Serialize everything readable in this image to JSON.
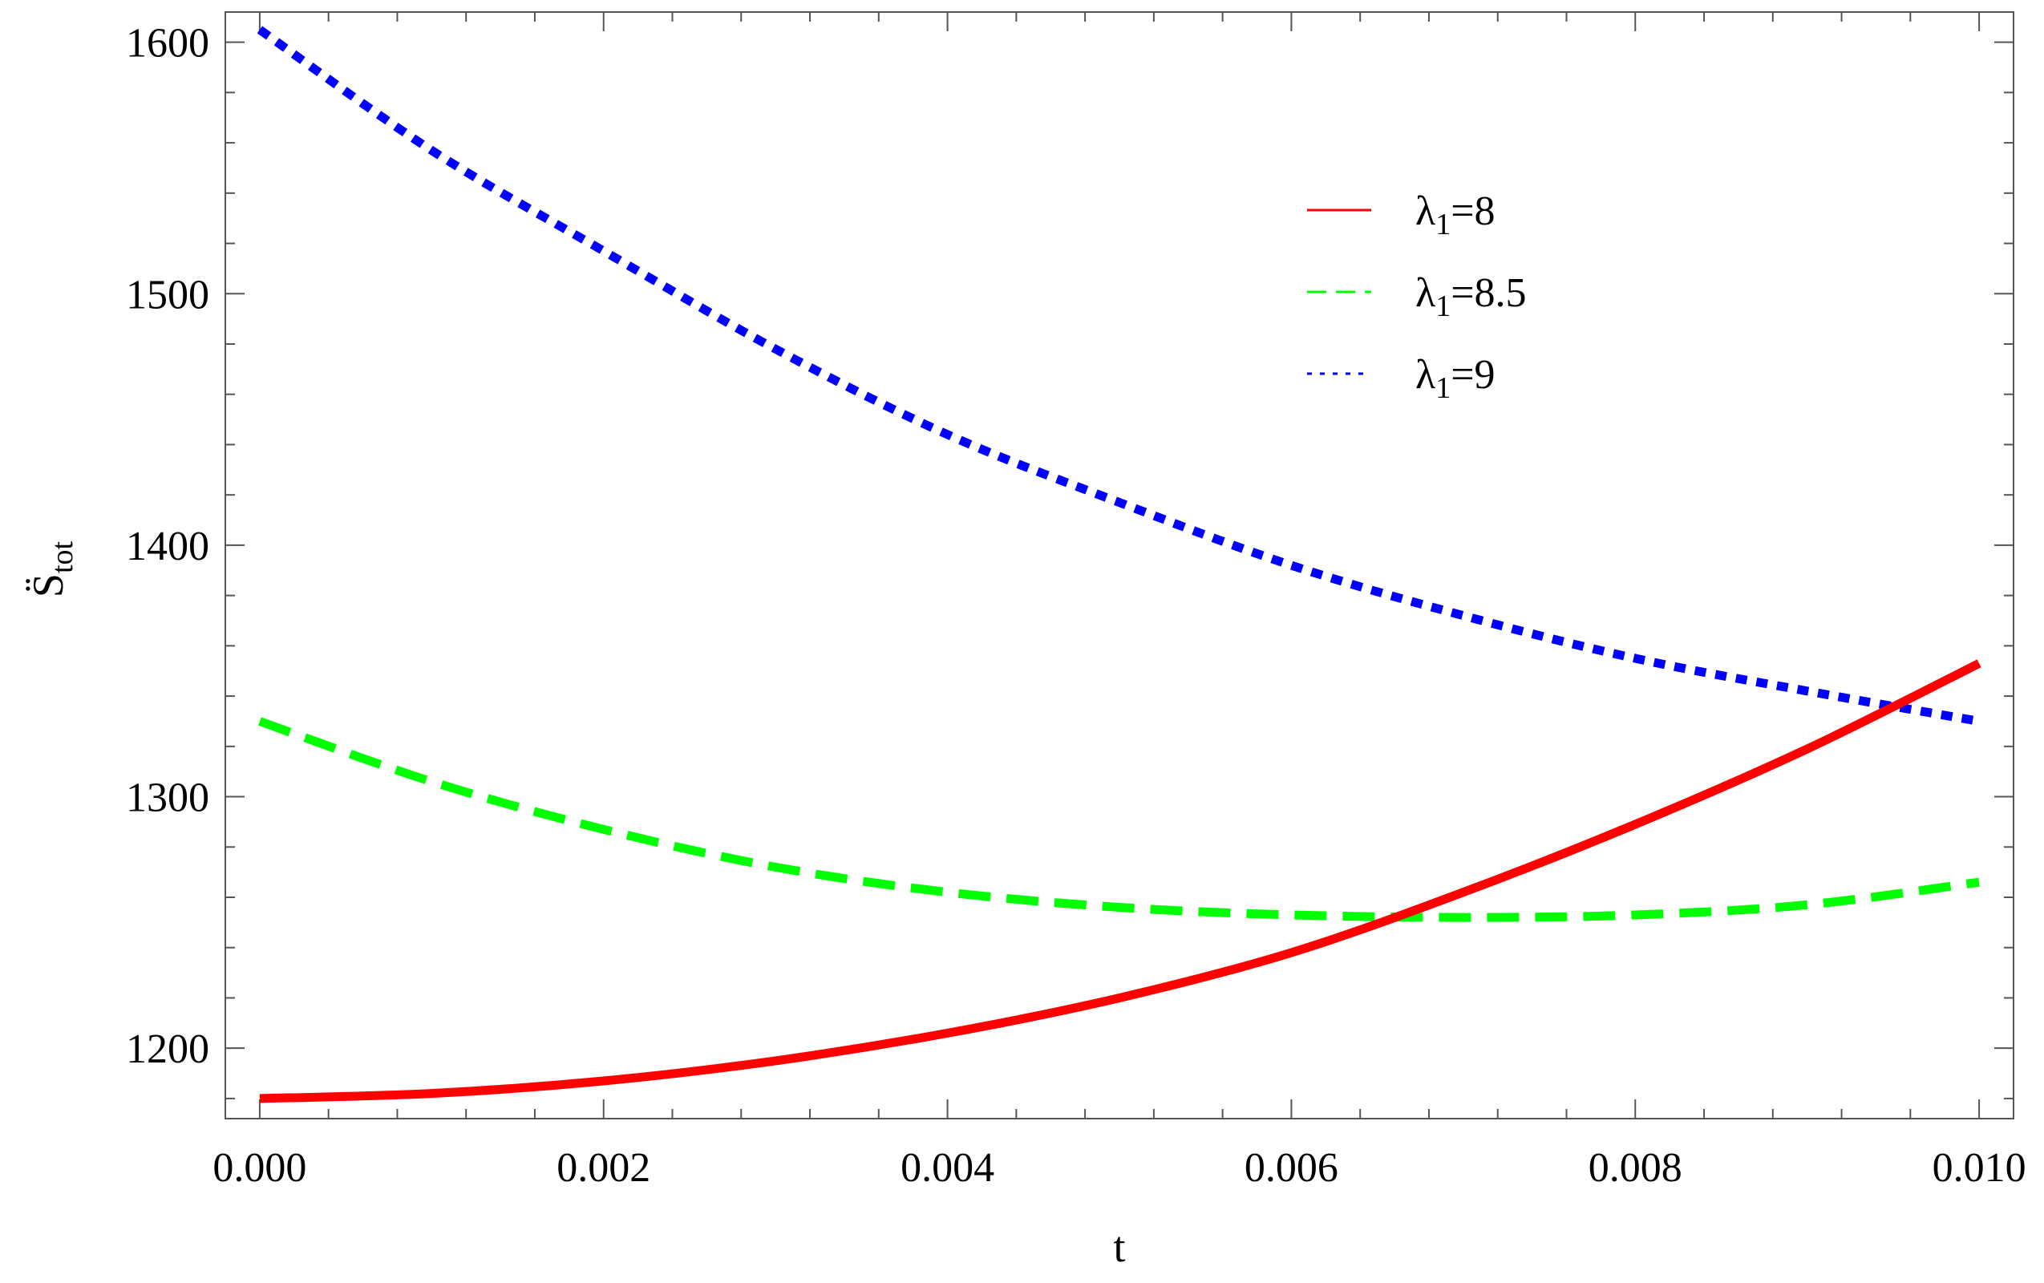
{
  "chart_data": {
    "type": "line",
    "title": "",
    "xlabel": "t",
    "ylabel": "S̈tot",
    "ylabel_parts": {
      "main": "S̈",
      "sub": "tot"
    },
    "xlim": [
      -0.0002,
      0.0102
    ],
    "ylim": [
      1172,
      1612
    ],
    "x_ticks": [
      0.0,
      0.002,
      0.004,
      0.006,
      0.008,
      0.01
    ],
    "x_tick_labels": [
      "0.000",
      "0.002",
      "0.004",
      "0.006",
      "0.008",
      "0.010"
    ],
    "y_ticks": [
      1200,
      1300,
      1400,
      1500,
      1600
    ],
    "y_tick_labels": [
      "1200",
      "1300",
      "1400",
      "1500",
      "1600"
    ],
    "grid": false,
    "legend_position": "top-right",
    "x": [
      0.0,
      0.001,
      0.002,
      0.003,
      0.004,
      0.005,
      0.006,
      0.007,
      0.008,
      0.009,
      0.01
    ],
    "series": [
      {
        "name": "λ1=8",
        "legend_parts": {
          "main": "λ",
          "sub": "1",
          "rest": "=8"
        },
        "color": "#ff0000",
        "style": "solid",
        "values": [
          1180,
          1182,
          1187,
          1195,
          1206,
          1220,
          1238,
          1262,
          1289,
          1319,
          1353
        ]
      },
      {
        "name": "λ1=8.5",
        "legend_parts": {
          "main": "λ",
          "sub": "1",
          "rest": "=8.5"
        },
        "color": "#00ff00",
        "style": "dashed",
        "values": [
          1330,
          1306,
          1287,
          1272,
          1262,
          1256,
          1253,
          1252,
          1253,
          1257,
          1266
        ]
      },
      {
        "name": "λ1=9",
        "legend_parts": {
          "main": "λ",
          "sub": "1",
          "rest": "=9"
        },
        "color": "#0000ff",
        "style": "dotted",
        "values": [
          1605,
          1557,
          1517,
          1478,
          1444,
          1417,
          1392,
          1372,
          1355,
          1342,
          1330
        ]
      }
    ]
  }
}
